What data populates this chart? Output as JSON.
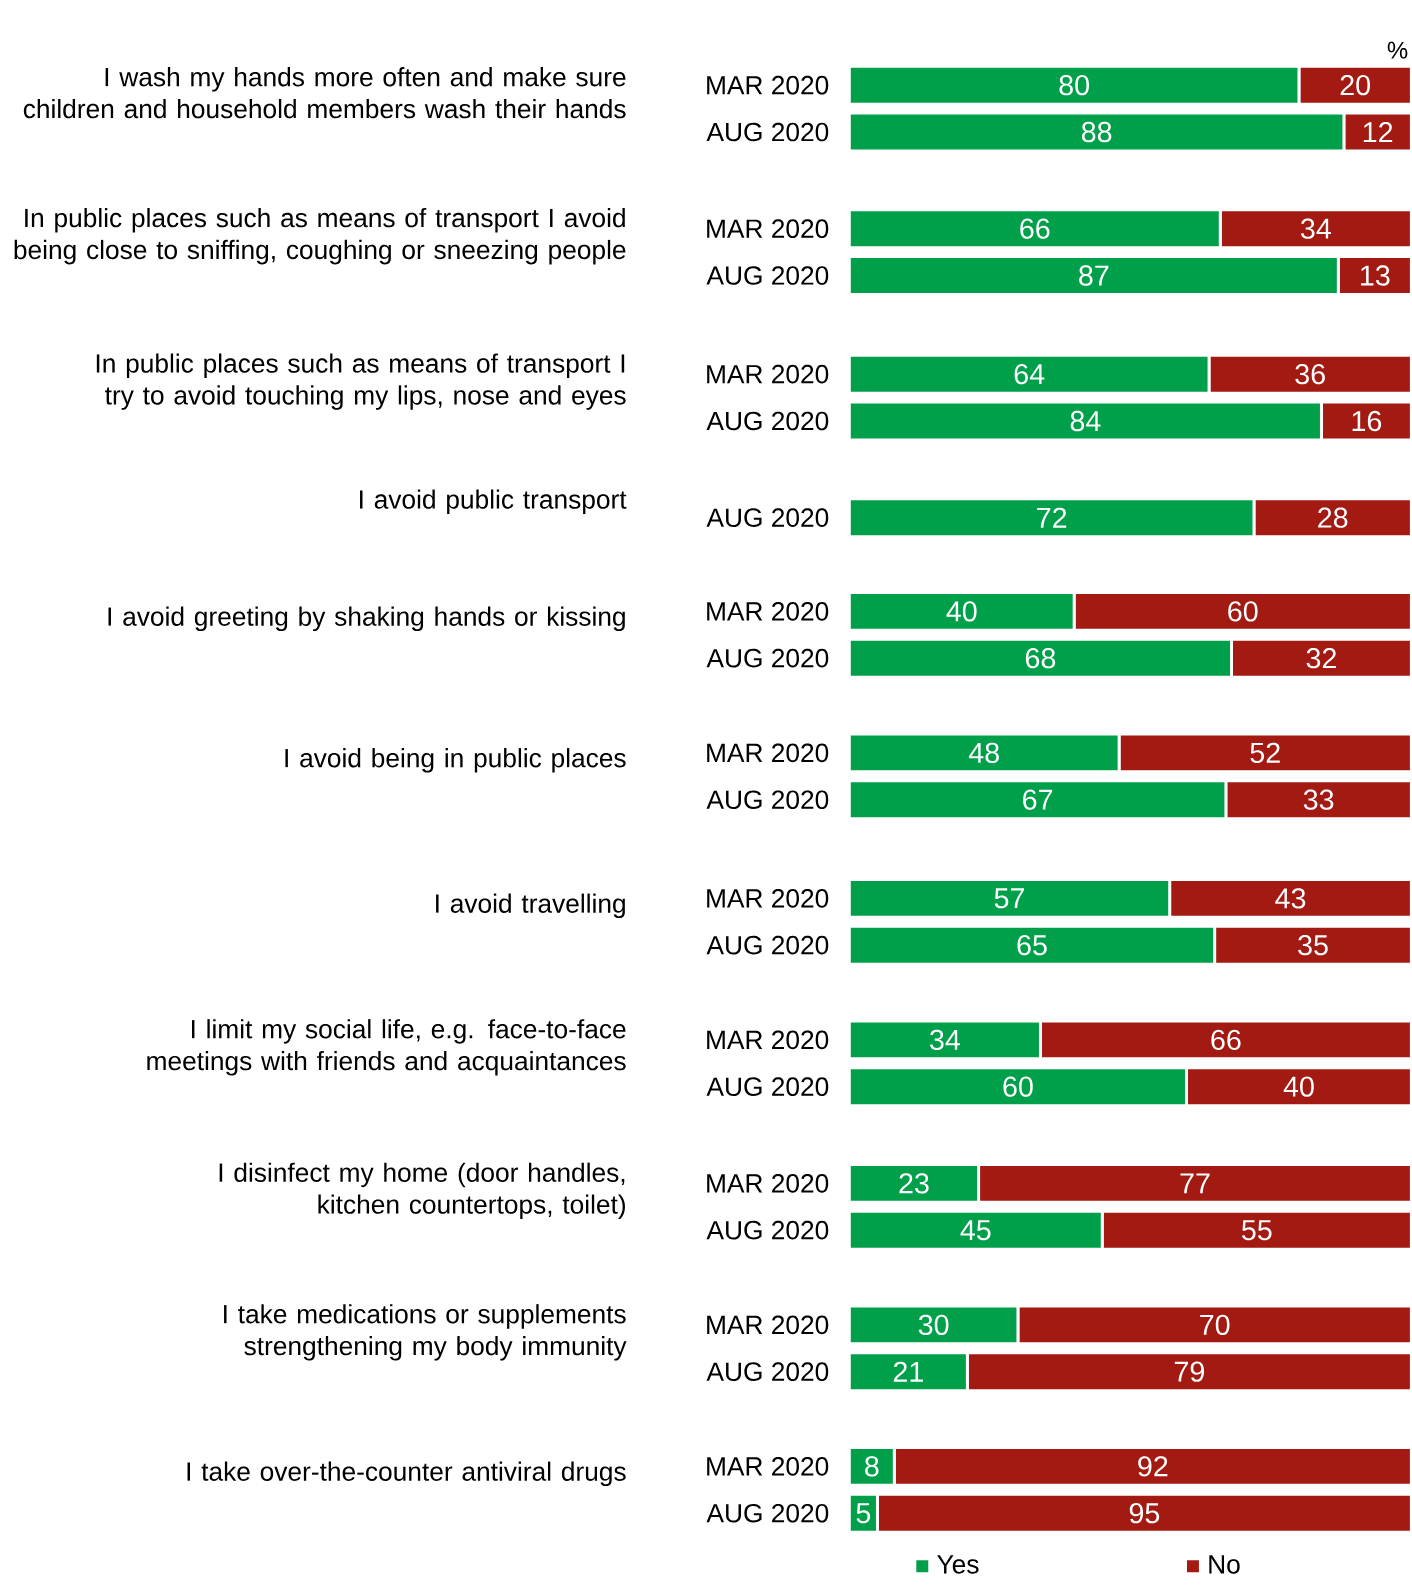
{
  "chart_data": [
    {
      "type": "bar",
      "orientation": "horizontal",
      "stacked": true,
      "title": "I wash my hands more often and make sure children and household members wash their hands",
      "categories": [
        "MAR 2020",
        "AUG 2020"
      ],
      "tick_labels": "y",
      "data_labels": true,
      "annotations": [
        "%"
      ],
      "series": [
        {
          "color": "#00a04b",
          "values": [
            80,
            88
          ]
        },
        {
          "color": "#a31a13",
          "values": [
            20,
            12
          ]
        }
      ]
    },
    {
      "type": "bar",
      "orientation": "horizontal",
      "stacked": true,
      "title": "In public places such as means of transport I avoid being close to sniffing, coughing or sneezing people",
      "categories": [
        "MAR 2020",
        "AUG 2020"
      ],
      "tick_labels": "y",
      "data_labels": true,
      "series": [
        {
          "color": "#00a04b",
          "values": [
            66,
            87
          ]
        },
        {
          "color": "#a31a13",
          "values": [
            34,
            13
          ]
        }
      ]
    },
    {
      "type": "bar",
      "orientation": "horizontal",
      "stacked": true,
      "title": "In public places such as means of transport I try to avoid touching my lips, nose and eyes",
      "categories": [
        "MAR 2020",
        "AUG 2020"
      ],
      "tick_labels": "y",
      "data_labels": true,
      "series": [
        {
          "color": "#00a04b",
          "values": [
            64,
            84
          ]
        },
        {
          "color": "#a31a13",
          "values": [
            36,
            16
          ]
        }
      ]
    },
    {
      "type": "bar",
      "orientation": "horizontal",
      "stacked": true,
      "title": "I avoid public transport",
      "categories": [
        "AUG 2020"
      ],
      "tick_labels": "y",
      "data_labels": true,
      "series": [
        {
          "color": "#00a04b",
          "values": [
            72
          ]
        },
        {
          "color": "#a31a13",
          "values": [
            28
          ]
        }
      ]
    },
    {
      "type": "bar",
      "orientation": "horizontal",
      "stacked": true,
      "title": "I avoid greeting by shaking hands or kissing",
      "categories": [
        "MAR 2020",
        "AUG 2020"
      ],
      "tick_labels": "y",
      "data_labels": true,
      "series": [
        {
          "color": "#00a04b",
          "values": [
            40,
            68
          ]
        },
        {
          "color": "#a31a13",
          "values": [
            60,
            32
          ]
        }
      ]
    },
    {
      "type": "bar",
      "orientation": "horizontal",
      "stacked": true,
      "title": "I avoid being in public places",
      "categories": [
        "MAR 2020",
        "AUG 2020"
      ],
      "tick_labels": "y",
      "data_labels": true,
      "series": [
        {
          "color": "#00a04b",
          "values": [
            48,
            67
          ]
        },
        {
          "color": "#a31a13",
          "values": [
            52,
            33
          ]
        }
      ]
    },
    {
      "type": "bar",
      "orientation": "horizontal",
      "stacked": true,
      "title": "I avoid travelling",
      "categories": [
        "MAR 2020",
        "AUG 2020"
      ],
      "tick_labels": "y",
      "data_labels": true,
      "series": [
        {
          "color": "#00a04b",
          "values": [
            57,
            65
          ]
        },
        {
          "color": "#a31a13",
          "values": [
            43,
            35
          ]
        }
      ]
    },
    {
      "type": "bar",
      "orientation": "horizontal",
      "stacked": true,
      "title": "I limit my social life, e.g. face-to-face meetings with friends and acquaintances",
      "categories": [
        "MAR 2020",
        "AUG 2020"
      ],
      "tick_labels": "y",
      "data_labels": true,
      "series": [
        {
          "color": "#00a04b",
          "values": [
            34,
            60
          ]
        },
        {
          "color": "#a31a13",
          "values": [
            66,
            40
          ]
        }
      ]
    },
    {
      "type": "bar",
      "orientation": "horizontal",
      "stacked": true,
      "title": "I disinfect my home (door handles, kitchen countertops, toilet)",
      "categories": [
        "MAR 2020",
        "AUG 2020"
      ],
      "tick_labels": "y",
      "data_labels": true,
      "series": [
        {
          "color": "#00a04b",
          "values": [
            23,
            45
          ]
        },
        {
          "color": "#a31a13",
          "values": [
            77,
            55
          ]
        }
      ]
    },
    {
      "type": "bar",
      "orientation": "horizontal",
      "stacked": true,
      "title": "I take medications or supplements strengthening my body immunity",
      "categories": [
        "MAR 2020",
        "AUG 2020"
      ],
      "tick_labels": "y",
      "data_labels": true,
      "series": [
        {
          "color": "#00a04b",
          "values": [
            30,
            21
          ]
        },
        {
          "color": "#a31a13",
          "values": [
            70,
            79
          ]
        }
      ]
    },
    {
      "type": "bar",
      "orientation": "horizontal",
      "stacked": true,
      "title": "I take over-the-counter antiviral drugs",
      "categories": [
        "MAR 2020",
        "AUG 2020"
      ],
      "tick_labels": "y",
      "data_labels": true,
      "legend": "bottom",
      "series": [
        {
          "name": "Yes",
          "color": "#00a04b",
          "values": [
            8,
            5
          ]
        },
        {
          "name": "No",
          "color": "#a31a13",
          "values": [
            92,
            95
          ]
        }
      ]
    }
  ]
}
